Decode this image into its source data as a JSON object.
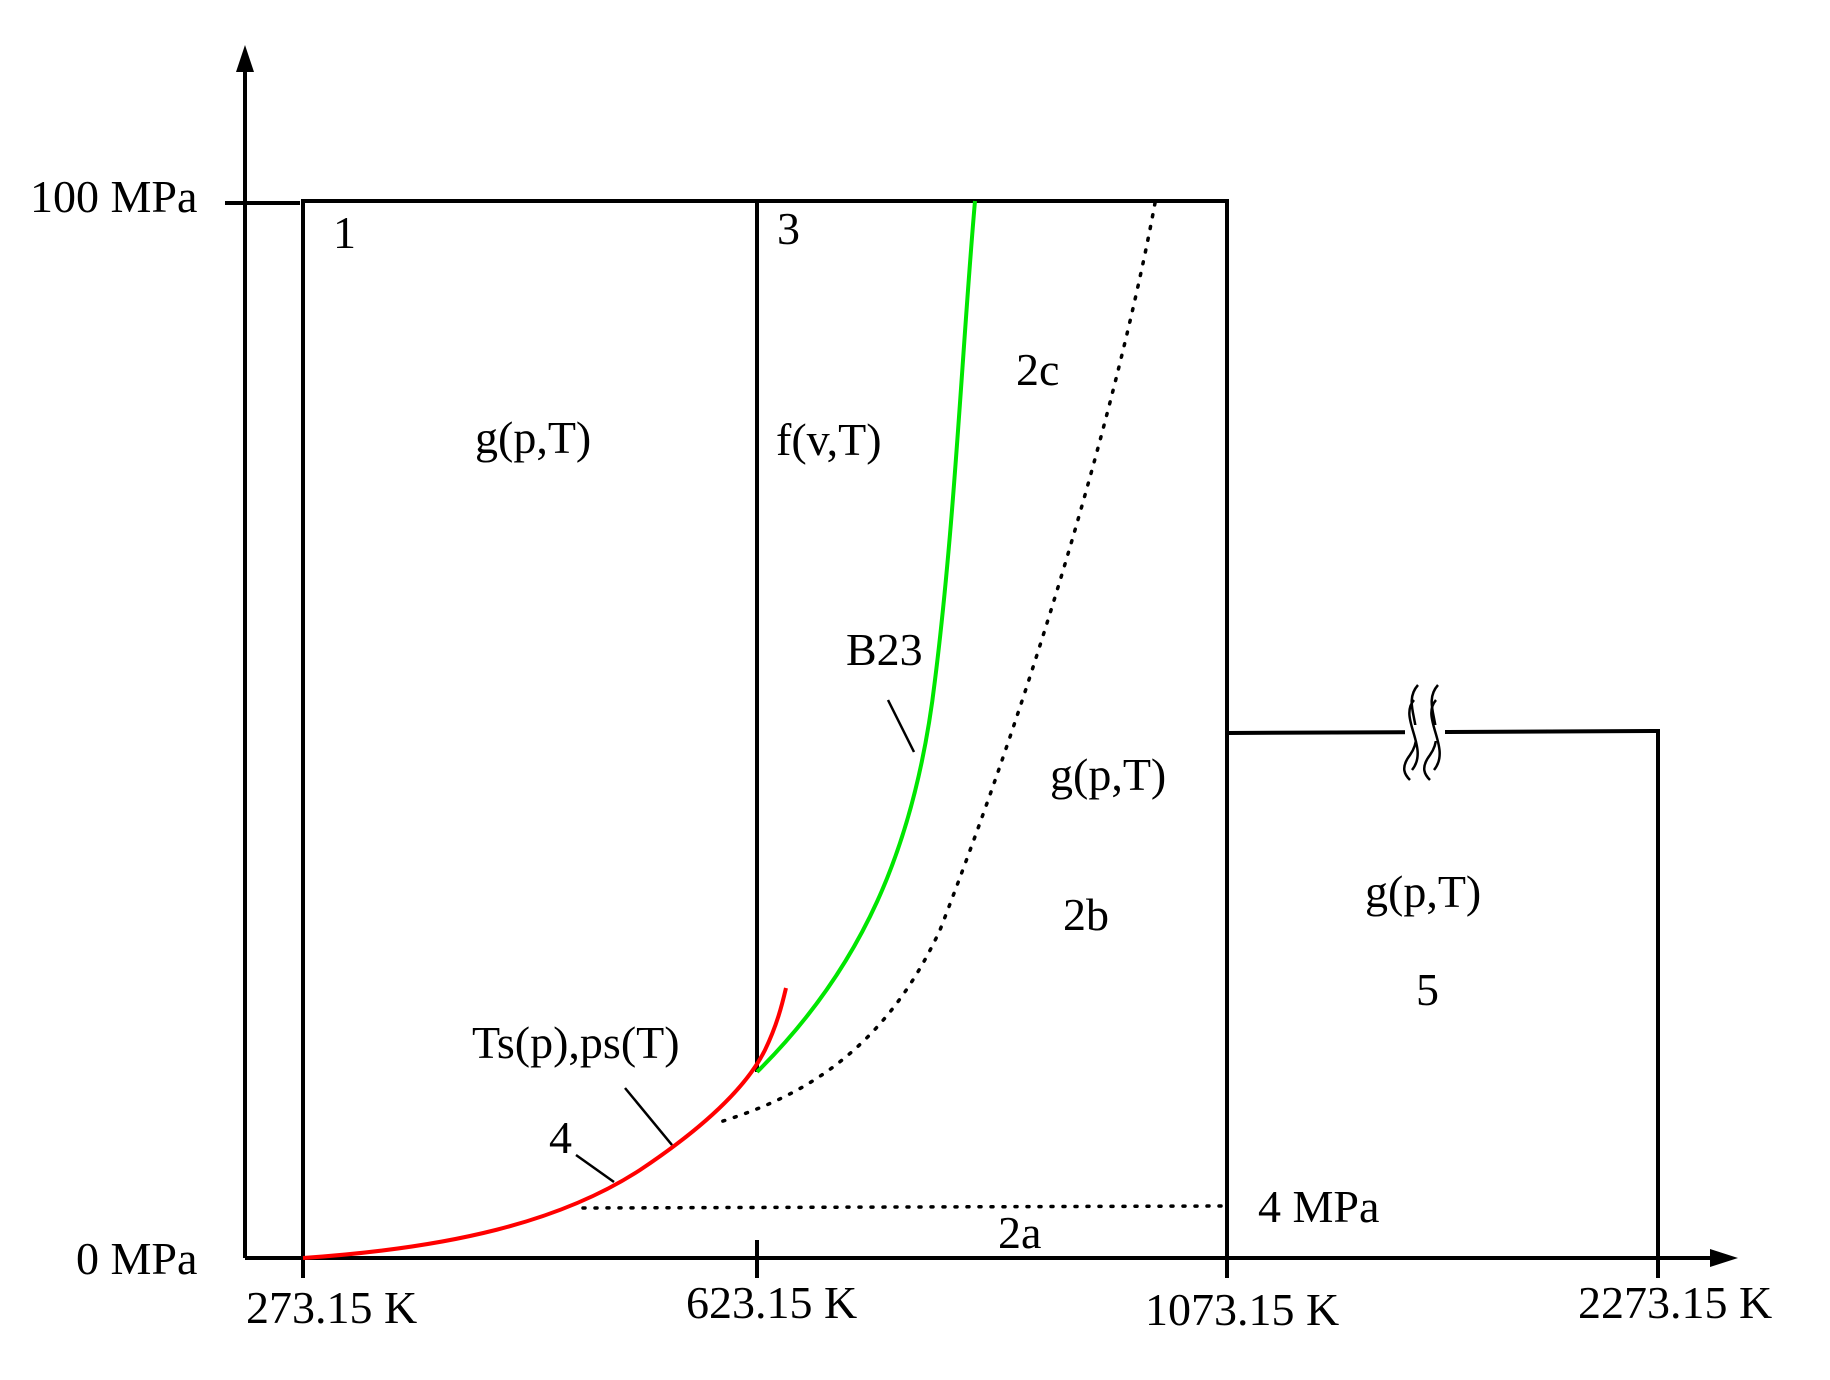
{
  "diagram": {
    "axis_labels": {
      "p_top": "100 MPa",
      "p_bottom": "0 MPa",
      "t1": "273.15 K",
      "t2": "623.15 K",
      "t3": "1073.15 K",
      "t4": "2273.15 K"
    },
    "region_labels": {
      "r1": "1",
      "r3": "3",
      "r2c": "2c",
      "r2b": "2b",
      "r2a": "2a",
      "r4": "4",
      "r5": "5"
    },
    "equation_labels": {
      "region1": "g(p,T)",
      "region3": "f(v,T)",
      "region2": "g(p,T)",
      "region5": "g(p,T)",
      "saturation": "Ts(p),ps(T)",
      "boundary": "B23",
      "isobar": "4 MPa"
    },
    "colors": {
      "saturation_curve": "#ff0000",
      "b23_curve": "#00e600",
      "lines": "#000000"
    }
  }
}
